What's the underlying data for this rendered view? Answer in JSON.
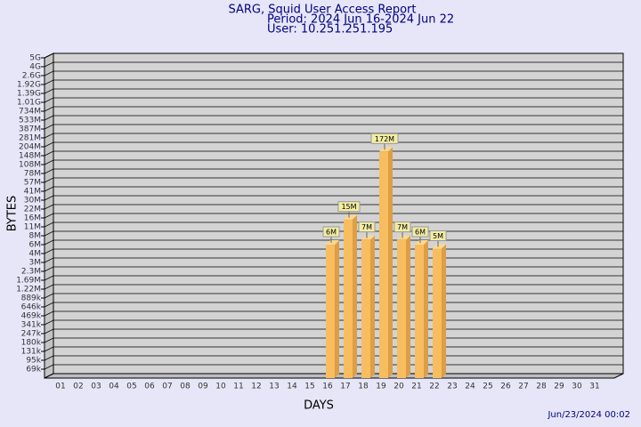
{
  "chart_data": {
    "type": "bar",
    "title": "SARG, Squid User Access Report",
    "subtitle": [
      "Period: 2024 Jun 16-2024 Jun 22",
      "User: 10.251.251.195"
    ],
    "x_label": "DAYS",
    "y_label": "BYTES",
    "footer": "Jun/23/2024 00:02",
    "log_scale": true,
    "grid": true,
    "color": "#f7bd5f",
    "categories": [
      "01",
      "02",
      "03",
      "04",
      "05",
      "06",
      "07",
      "08",
      "09",
      "10",
      "11",
      "12",
      "13",
      "14",
      "15",
      "16",
      "17",
      "18",
      "19",
      "20",
      "21",
      "22",
      "23",
      "24",
      "25",
      "26",
      "27",
      "28",
      "29",
      "30",
      "31"
    ],
    "values": [
      null,
      null,
      null,
      null,
      null,
      null,
      null,
      null,
      null,
      null,
      null,
      null,
      null,
      null,
      null,
      6000000,
      15000000,
      7000000,
      172000000,
      7000000,
      6000000,
      5000000,
      null,
      null,
      null,
      null,
      null,
      null,
      null,
      null,
      null
    ],
    "value_labels": [
      null,
      null,
      null,
      null,
      null,
      null,
      null,
      null,
      null,
      null,
      null,
      null,
      null,
      null,
      null,
      "6M",
      "15M",
      "7M",
      "172M",
      "7M",
      "6M",
      "5M",
      null,
      null,
      null,
      null,
      null,
      null,
      null,
      null,
      null
    ],
    "ylim": [
      50000,
      5000000000
    ],
    "yticks": [
      {
        "value": 69000,
        "label": "69k"
      },
      {
        "value": 95000,
        "label": "95k"
      },
      {
        "value": 131000,
        "label": "131k"
      },
      {
        "value": 180000,
        "label": "180k"
      },
      {
        "value": 247000,
        "label": "247k"
      },
      {
        "value": 341000,
        "label": "341k"
      },
      {
        "value": 469000,
        "label": "469k"
      },
      {
        "value": 646000,
        "label": "646k"
      },
      {
        "value": 889000,
        "label": "889k"
      },
      {
        "value": 1220000,
        "label": "1.22M"
      },
      {
        "value": 1690000,
        "label": "1.69M"
      },
      {
        "value": 2300000,
        "label": "2.3M"
      },
      {
        "value": 3000000,
        "label": "3M"
      },
      {
        "value": 4000000,
        "label": "4M"
      },
      {
        "value": 6000000,
        "label": "6M"
      },
      {
        "value": 8000000,
        "label": "8M"
      },
      {
        "value": 11000000,
        "label": "11M"
      },
      {
        "value": 16000000,
        "label": "16M"
      },
      {
        "value": 22000000,
        "label": "22M"
      },
      {
        "value": 30000000,
        "label": "30M"
      },
      {
        "value": 41000000,
        "label": "41M"
      },
      {
        "value": 57000000,
        "label": "57M"
      },
      {
        "value": 78000000,
        "label": "78M"
      },
      {
        "value": 108000000,
        "label": "108M"
      },
      {
        "value": 148000000,
        "label": "148M"
      },
      {
        "value": 204000000,
        "label": "204M"
      },
      {
        "value": 281000000,
        "label": "281M"
      },
      {
        "value": 387000000,
        "label": "387M"
      },
      {
        "value": 533000000,
        "label": "533M"
      },
      {
        "value": 734000000,
        "label": "734M"
      },
      {
        "value": 1010000000,
        "label": "1.01G"
      },
      {
        "value": 1390000000,
        "label": "1.39G"
      },
      {
        "value": 1920000000,
        "label": "1.92G"
      },
      {
        "value": 2600000000,
        "label": "2.6G"
      },
      {
        "value": 4000000000,
        "label": "4G"
      },
      {
        "value": 5000000000,
        "label": "5G"
      }
    ]
  }
}
